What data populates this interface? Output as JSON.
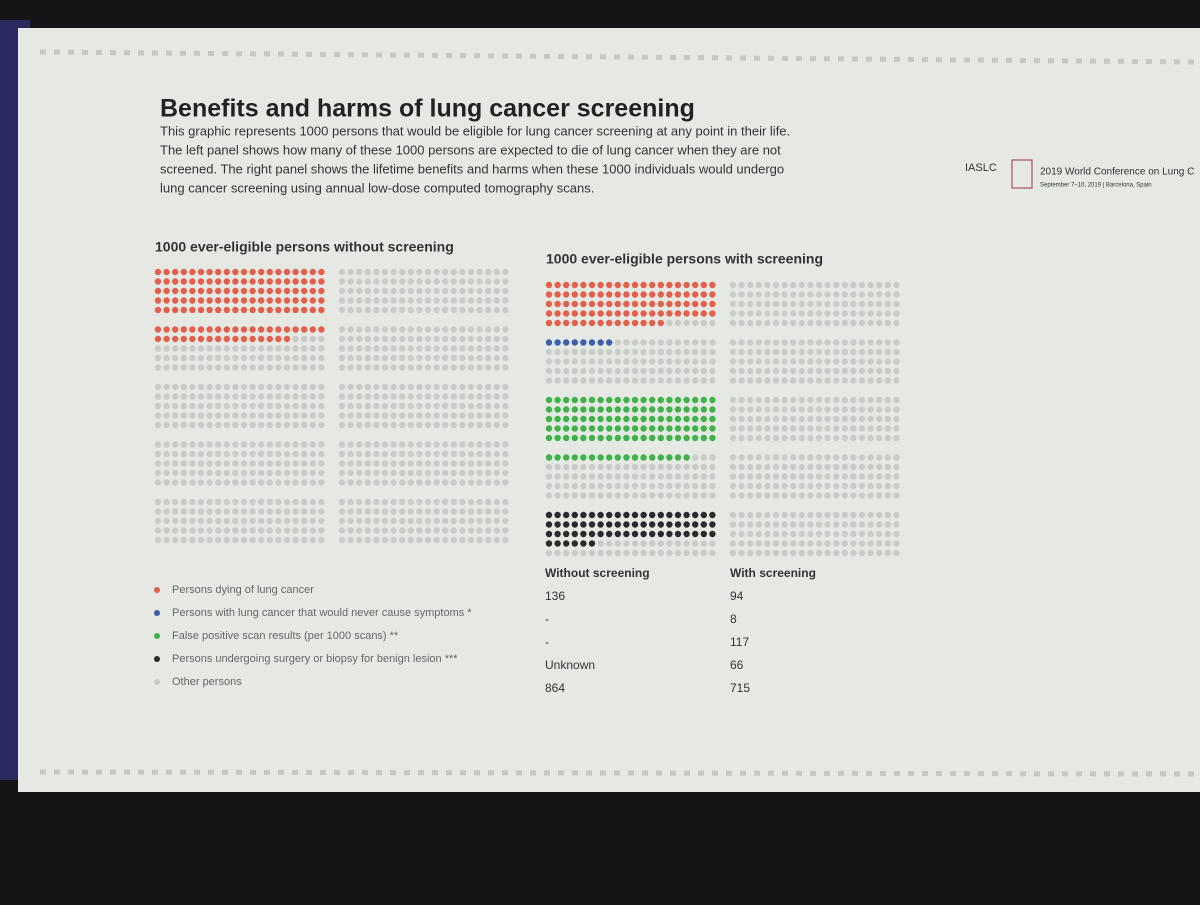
{
  "header": {
    "title": "Benefits and harms of lung cancer screening",
    "description": [
      "This graphic represents 1000 persons that would be eligible for lung cancer screening at any point in their life.",
      "The left panel shows how many of these 1000 persons are expected to die of lung cancer when they are not",
      "screened. The right panel shows the lifetime benefits and harms when these 1000 individuals would undergo",
      "lung cancer screening using annual low-dose computed tomography scans."
    ]
  },
  "logo": {
    "org": "IASLC",
    "conference": "2019 World Conference on Lung C",
    "dates": "September 7–10, 2019 | Barcelona, Spain"
  },
  "chart_data": {
    "type": "waffle",
    "panel_titles": [
      "1000 ever-eligible persons without screening",
      "1000 ever-eligible persons with screening"
    ],
    "categories": [
      "Persons dying of lung cancer",
      "Persons with lung cancer that would never cause symptoms *",
      "False positive scan results (per 1000 scans) **",
      "Persons undergoing surgery or biopsy for benign lesion ***",
      "Other persons"
    ],
    "colors": [
      "#e2604c",
      "#3b5fae",
      "#3fb24a",
      "#2a2a2e",
      "#c9cbc8"
    ],
    "series": [
      {
        "name": "Without screening",
        "values": [
          136,
          null,
          null,
          null,
          864
        ],
        "value_labels": [
          null,
          "-",
          "-",
          "Unknown",
          null
        ]
      },
      {
        "name": "With screening",
        "values": [
          94,
          8,
          117,
          66,
          715
        ]
      }
    ]
  }
}
